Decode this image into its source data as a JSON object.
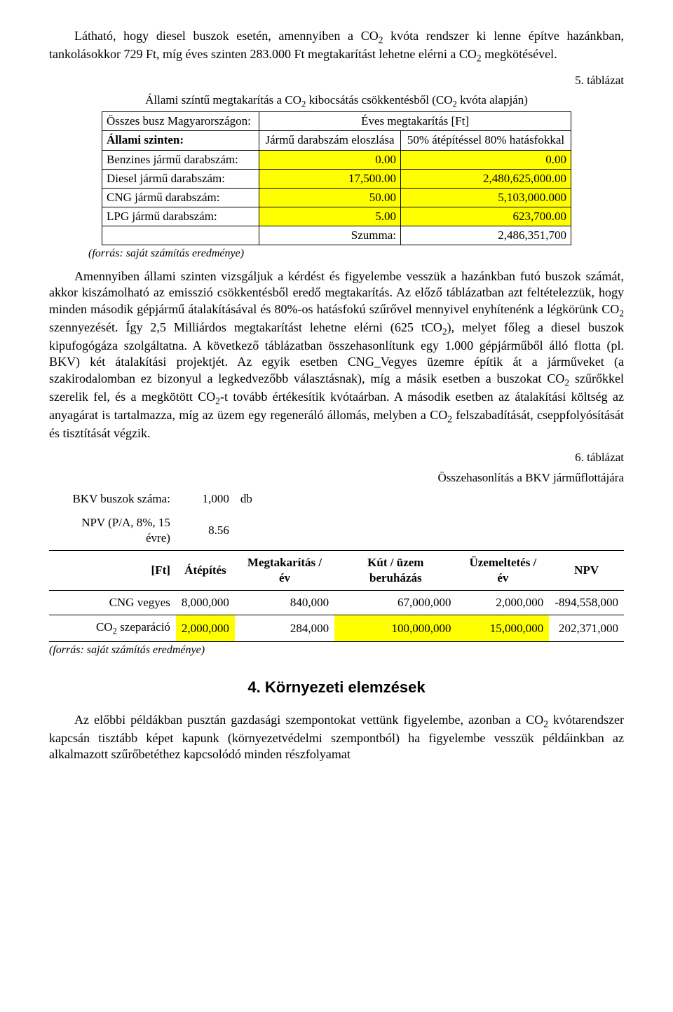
{
  "intro_html": "Látható, hogy diesel buszok esetén, amennyiben a CO<sub>2</sub> kvóta rendszer ki lenne építve hazánkban, tankolásokkor 729 Ft, míg éves szinten 283.000 Ft megtakarítást lehetne elérni a CO<sub>2</sub> megkötésével.",
  "t5_cap1": "5. táblázat",
  "t5_cap2_html": "Állami színtű megtakarítás a CO<sub>2</sub> kibocsátás csökkentésből (CO<sub>2</sub> kvóta alapján)",
  "t5_r1c1": "Összes busz Magyarországon:",
  "t5_r1c2": "Éves megtakarítás [Ft]",
  "t5_r2c1": "Állami szinten:",
  "t5_r2c2": "Jármű darabszám eloszlása",
  "t5_r2c3": "50% átépítéssel 80% hatásfokkal",
  "t5_r3c1": "Benzines jármű darabszám:",
  "t5_r3c2": "0.00",
  "t5_r3c3": "0.00",
  "t5_r4c1": "Diesel jármű darabszám:",
  "t5_r4c2": "17,500.00",
  "t5_r4c3": "2,480,625,000.00",
  "t5_r5c1": "CNG jármű darabszám:",
  "t5_r5c2": "50.00",
  "t5_r5c3": "5,103,000.000",
  "t5_r6c1": "LPG jármű darabszám:",
  "t5_r6c2": "5.00",
  "t5_r6c3": "623,700.00",
  "t5_sum_lbl": "Szumma:",
  "t5_sum_val": "2,486,351,700",
  "t5_source": "(forrás: saját számítás eredménye)",
  "mid_html": "Amennyiben állami szinten vizsgáljuk a kérdést és figyelembe vesszük a hazánkban futó buszok számát, akkor kiszámolható az emisszió csökkentésből eredő megtakarítás. Az előző táblázatban azt feltételezzük, hogy minden második gépjármű átalakításával és 80%-os hatásfokú szűrővel mennyivel enyhítenénk a légkörünk CO<sub>2</sub> szennyezését. Így 2,5 Milliárdos megtakarítást lehetne elérni (625 tCO<sub>2</sub>), melyet főleg a diesel buszok kipufogógáza szolgáltatna. A következő táblázatban összehasonlítunk egy 1.000 gépjárműből álló flotta (pl. BKV) két átalakítási projektjét. Az egyik esetben CNG_Vegyes üzemre építik át a járműveket (a szakirodalomban ez bizonyul a legkedvezőbb választásnak), míg a másik esetben a buszokat CO<sub>2</sub> szűrőkkel szerelik fel, és a megkötött CO<sub>2</sub>-t tovább értékesítik kvótaárban. A második esetben az átalakítási költség az anyagárat is tartalmazza, míg az üzem egy regeneráló állomás, melyben a CO<sub>2</sub> felszabadítását, cseppfolyósítását és tisztítását végzik.",
  "t6_cap1": "6. táblázat",
  "t6_cap2": "Összehasonlítás a BKV járműflottájára",
  "t6_r1_lbl": "BKV buszok száma:",
  "t6_r1_v": "1,000",
  "t6_r1_u": "db",
  "t6_r2_lbl": "NPV (P/A, 8%, 15 évre)",
  "t6_r2_v": "8.56",
  "t6_h_ft": "[Ft]",
  "t6_h_atep": "Átépítés",
  "t6_h_meg": "Megtakarítás / év",
  "t6_h_kut": "Kút / üzem beruházás",
  "t6_h_uzem": "Üzemeltetés / év",
  "t6_h_npv": "NPV",
  "t6_d1_lbl": "CNG vegyes",
  "t6_d1_atep": "8,000,000",
  "t6_d1_meg": "840,000",
  "t6_d1_kut": "67,000,000",
  "t6_d1_uzem": "2,000,000",
  "t6_d1_npv": "-894,558,000",
  "t6_d2_lbl_html": "CO<sub>2</sub> szeparáció",
  "t6_d2_atep": "2,000,000",
  "t6_d2_meg": "284,000",
  "t6_d2_kut": "100,000,000",
  "t6_d2_uzem": "15,000,000",
  "t6_d2_npv": "202,371,000",
  "t6_source": "(forrás: saját számítás eredménye)",
  "section_heading": "4. Környezeti elemzések",
  "outro_html": "Az előbbi példákban pusztán gazdasági szempontokat vettünk figyelembe, azonban a CO<sub>2</sub> kvótarendszer kapcsán tisztább képet kapunk (környezetvédelmi szempontból) ha figyelembe vesszük példáinkban az alkalmazott szűrőbetéthez kapcsolódó minden részfolyamat"
}
